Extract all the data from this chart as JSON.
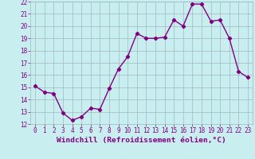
{
  "x": [
    0,
    1,
    2,
    3,
    4,
    5,
    6,
    7,
    8,
    9,
    10,
    11,
    12,
    13,
    14,
    15,
    16,
    17,
    18,
    19,
    20,
    21,
    22,
    23
  ],
  "y": [
    15.1,
    14.6,
    14.5,
    12.9,
    12.3,
    12.6,
    13.3,
    13.2,
    14.9,
    16.5,
    17.5,
    19.4,
    19.0,
    19.0,
    19.1,
    20.5,
    20.0,
    21.8,
    21.8,
    20.4,
    20.5,
    19.0,
    16.3,
    15.8
  ],
  "line_color": "#800080",
  "marker": "D",
  "marker_size": 2.2,
  "line_width": 1.0,
  "bg_color": "#c8eef0",
  "grid_color": "#a0b8c0",
  "xlabel": "Windchill (Refroidissement éolien,°C)",
  "ylabel": "",
  "ylim": [
    12,
    22
  ],
  "xlim_min": -0.5,
  "xlim_max": 23.5,
  "yticks": [
    12,
    13,
    14,
    15,
    16,
    17,
    18,
    19,
    20,
    21,
    22
  ],
  "xticks": [
    0,
    1,
    2,
    3,
    4,
    5,
    6,
    7,
    8,
    9,
    10,
    11,
    12,
    13,
    14,
    15,
    16,
    17,
    18,
    19,
    20,
    21,
    22,
    23
  ],
  "tick_fontsize": 5.5,
  "xlabel_fontsize": 6.8,
  "label_color": "#800080",
  "tick_color": "#800080"
}
